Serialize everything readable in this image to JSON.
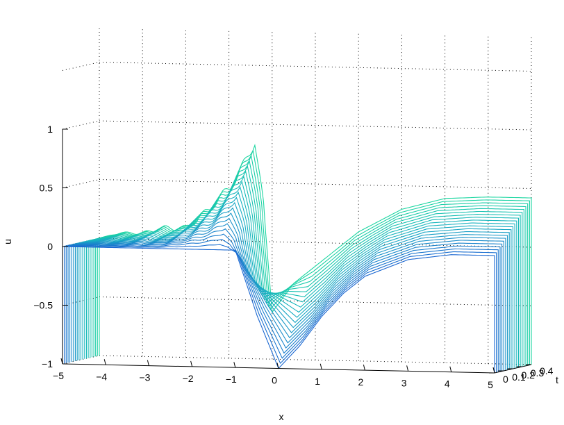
{
  "chart_data": {
    "type": "line",
    "title": "",
    "xlabel": "x",
    "ylabel": "t",
    "zlabel": "u",
    "xlim": [
      -5,
      5
    ],
    "ylim": [
      0,
      0.4
    ],
    "zlim": [
      -1,
      1
    ],
    "x_ticks": [
      -5,
      -4,
      -3,
      -2,
      -1,
      0,
      1,
      2,
      3,
      4,
      5
    ],
    "y_ticks": [
      0,
      0.1,
      0.2,
      0.3,
      0.4
    ],
    "z_ticks": [
      -1,
      -0.5,
      0,
      0.5,
      1
    ],
    "x_tick_labels": [
      "−5",
      "−4",
      "−3",
      "−2",
      "−1",
      "0",
      "1",
      "2",
      "3",
      "4",
      "5"
    ],
    "y_tick_labels": [
      "0",
      "0.1",
      "0.2",
      "0.3",
      "0.4"
    ],
    "z_tick_labels": [
      "−1",
      "−0.5",
      "0",
      "0.5",
      "1"
    ],
    "grid": true,
    "series_count": 21,
    "t_values": [
      0,
      0.02,
      0.04,
      0.06,
      0.08,
      0.1,
      0.12,
      0.14,
      0.16,
      0.18,
      0.2,
      0.22,
      0.24,
      0.26,
      0.28,
      0.3,
      0.32,
      0.34,
      0.36,
      0.38,
      0.4
    ],
    "initial_profile": {
      "x": [
        -5,
        -4,
        -3,
        -2,
        -1.5,
        -1,
        -0.5,
        0,
        0.5,
        1,
        1.5,
        2,
        3,
        4,
        5
      ],
      "u": [
        0,
        0,
        0,
        0,
        0,
        0,
        -0.55,
        -1,
        -0.8,
        -0.55,
        -0.35,
        -0.2,
        -0.05,
        0,
        0
      ]
    },
    "final_profile": {
      "x": [
        -5,
        -4.5,
        -4,
        -3.5,
        -3,
        -2.5,
        -2,
        -1.8,
        -1.6,
        -1.4,
        -1.2,
        -1,
        -0.5,
        0,
        1,
        2,
        3,
        4,
        5
      ],
      "u": [
        0,
        0.05,
        0.05,
        0.1,
        0.1,
        0.25,
        0.45,
        0.55,
        0.7,
        0.85,
        0.3,
        -0.6,
        -0.35,
        -0.2,
        0.1,
        0.3,
        0.4,
        0.42,
        0.42
      ]
    },
    "colormap": [
      "#1a1ad6",
      "#1a6fd0",
      "#19b0c2",
      "#1ad6a0"
    ]
  }
}
